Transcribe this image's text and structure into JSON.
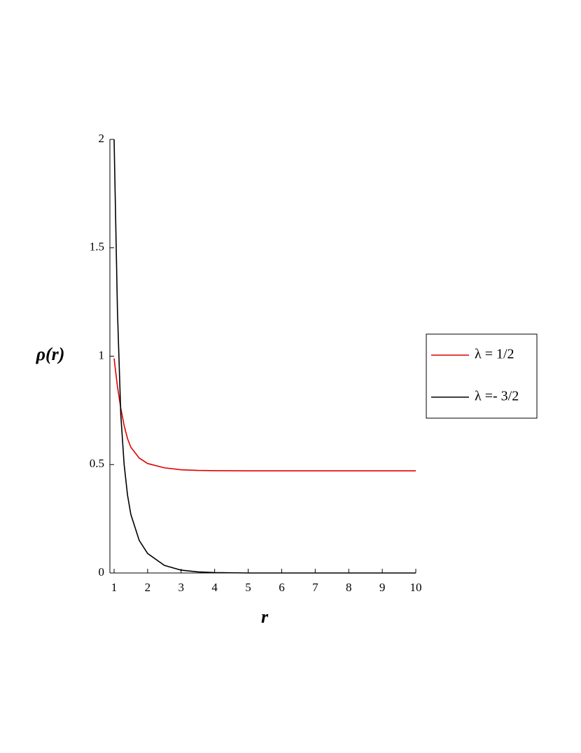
{
  "chart_data": {
    "type": "line",
    "xlabel": "r",
    "ylabel": "ρ(r)",
    "x": [
      1,
      1.1,
      1.2,
      1.3,
      1.4,
      1.5,
      1.75,
      2,
      2.5,
      3,
      3.5,
      4,
      5,
      6,
      7,
      8,
      9,
      10
    ],
    "series": [
      {
        "name": "λ = 1/2",
        "color": "#e00000",
        "values": [
          0.99,
          0.86,
          0.76,
          0.68,
          0.62,
          0.58,
          0.53,
          0.505,
          0.485,
          0.476,
          0.473,
          0.472,
          0.471,
          0.471,
          0.471,
          0.471,
          0.471,
          0.471
        ]
      },
      {
        "name": "λ =- 3/2",
        "color": "#000000",
        "values": [
          2,
          1.21,
          0.73,
          0.5,
          0.36,
          0.27,
          0.15,
          0.09,
          0.035,
          0.013,
          0.005,
          0.002,
          0,
          0,
          0,
          0,
          0,
          0
        ]
      }
    ],
    "xlim": [
      0.875,
      10
    ],
    "ylim": [
      0,
      2
    ],
    "xticks": [
      1,
      2,
      3,
      4,
      5,
      6,
      7,
      8,
      9,
      10
    ],
    "yticks": [
      0,
      0.5,
      1,
      1.5,
      2
    ],
    "legend": "right"
  }
}
